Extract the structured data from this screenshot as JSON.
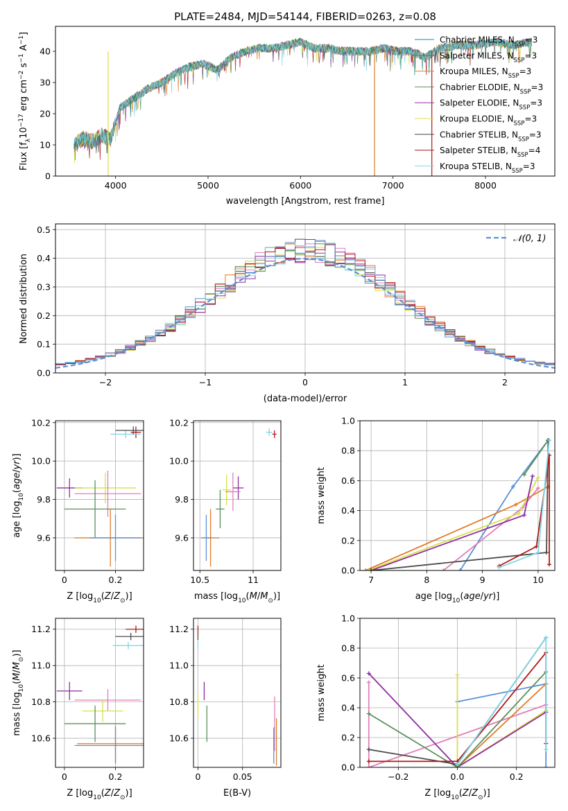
{
  "figure_title": "PLATE=2484, MJD=54144, FIBERID=0263, z=0.08",
  "colors": {
    "Chabrier MILES": "#1f8b8b",
    "Salpeter MILES": "#6b6b6b",
    "Kroupa MILES": "#e07b28",
    "Chabrier ELODIE": "#5a8f5a",
    "Salpeter ELODIE": "#8e2ca0",
    "Kroupa ELODIE": "#d8e04a",
    "Chabrier STELIB": "#4a4a4a",
    "Salpeter STELIB": "#b01818",
    "Kroupa STELIB": "#7fd6e6",
    "gaussian": "#5b8fd6",
    "pink": "#e07fb8",
    "blue": "#5b8fd6"
  },
  "chart_data": [
    {
      "id": "spectrum",
      "type": "line",
      "xlabel": "wavelength [Angstrom, rest frame]",
      "ylabel": "Flux [f_λ 10^-17 erg cm^-2 s^-1 A^-1]",
      "xlim": [
        3350,
        8750
      ],
      "ylim": [
        0,
        48
      ],
      "xticks": [
        4000,
        5000,
        6000,
        7000,
        8000
      ],
      "yticks": [
        0,
        10,
        20,
        30,
        40
      ],
      "grid": false,
      "legend_position": "top-right",
      "x": [
        3550,
        3650,
        3750,
        3850,
        3950,
        4050,
        4150,
        4250,
        4350,
        4500,
        4650,
        4800,
        4950,
        5100,
        5250,
        5400,
        5550,
        5700,
        5850,
        6000,
        6150,
        6300,
        6450,
        6600,
        6750,
        6900,
        7050,
        7200,
        7350,
        7500,
        7700,
        7900,
        8100,
        8300,
        8500
      ],
      "y": [
        10,
        12,
        11,
        13,
        12,
        22,
        24,
        26,
        28,
        30,
        33,
        35,
        36,
        34,
        38,
        40,
        41,
        41,
        42,
        43,
        41,
        41,
        40,
        40,
        40,
        41,
        40,
        40,
        38,
        41,
        42,
        42,
        43,
        42,
        43
      ],
      "series": [
        {
          "name": "Chabrier MILES, N_SSP=3",
          "name_main": "Chabrier MILES, N",
          "name_sub": "SSP",
          "name_tail": "=3"
        },
        {
          "name": "Salpeter MILES, N_SSP=3",
          "name_main": "Salpeter MILES, N",
          "name_sub": "SSP",
          "name_tail": "=3"
        },
        {
          "name": "Kroupa MILES, N_SSP=3",
          "name_main": "Kroupa MILES, N",
          "name_sub": "SSP",
          "name_tail": "=3"
        },
        {
          "name": "Chabrier ELODIE, N_SSP=3",
          "name_main": "Chabrier ELODIE, N",
          "name_sub": "SSP",
          "name_tail": "=3"
        },
        {
          "name": "Salpeter ELODIE, N_SSP=3",
          "name_main": "Salpeter ELODIE, N",
          "name_sub": "SSP",
          "name_tail": "=3"
        },
        {
          "name": "Kroupa ELODIE, N_SSP=3",
          "name_main": "Kroupa ELODIE, N",
          "name_sub": "SSP",
          "name_tail": "=3"
        },
        {
          "name": "Chabrier STELIB, N_SSP=3",
          "name_main": "Chabrier STELIB, N",
          "name_sub": "SSP",
          "name_tail": "=3"
        },
        {
          "name": "Salpeter STELIB, N_SSP=4",
          "name_main": "Salpeter STELIB, N",
          "name_sub": "SSP",
          "name_tail": "=4"
        },
        {
          "name": "Kroupa STELIB, N_SSP=3",
          "name_main": "Kroupa STELIB, N",
          "name_sub": "SSP",
          "name_tail": "=3"
        }
      ],
      "drops": [
        {
          "x": 3920,
          "color": "Kroupa ELODIE"
        },
        {
          "x": 6800,
          "color": "Kroupa MILES"
        },
        {
          "x": 7420,
          "color": "Salpeter STELIB"
        }
      ]
    },
    {
      "id": "residuals",
      "type": "bar",
      "xlabel": "(data-model)/error",
      "ylabel": "Normed distribution",
      "xlim": [
        -2.5,
        2.5
      ],
      "ylim": [
        0,
        0.52
      ],
      "xticks": [
        -2,
        -1,
        0,
        1,
        2
      ],
      "xtick_labels": [
        "−2",
        "−1",
        "0",
        "1",
        "2"
      ],
      "yticks": [
        0.0,
        0.1,
        0.2,
        0.3,
        0.4,
        0.5
      ],
      "ytick_labels": [
        "0.0",
        "0.1",
        "0.2",
        "0.3",
        "0.4",
        "0.5"
      ],
      "grid": true,
      "legend_position": "top-right",
      "legend_label": "𝒩(0, 1)",
      "bin_width": 0.1
    },
    {
      "id": "age_vs_Z",
      "type": "scatter",
      "xlabel": "Z [log10(Z/Z⊙)]",
      "ylabel": "age [log10(age/yr)]",
      "xlim": [
        -0.035,
        0.31
      ],
      "ylim": [
        9.43,
        10.21
      ],
      "xticks": [
        0.0,
        0.2
      ],
      "yticks": [
        9.6,
        9.8,
        10.0,
        10.2
      ],
      "grid": true,
      "points": [
        {
          "x": 0.28,
          "y": 10.15,
          "xerr": 0.02,
          "yerr": 0.03,
          "color": "Salpeter STELIB"
        },
        {
          "x": 0.24,
          "y": 10.14,
          "xerr": 0.06,
          "yerr": 0.02,
          "color": "Kroupa STELIB"
        },
        {
          "x": 0.27,
          "y": 10.16,
          "xerr": 0.07,
          "yerr": 0.02,
          "color": "Chabrier STELIB"
        },
        {
          "x": 0.02,
          "y": 9.86,
          "xerr": 0.05,
          "yerr": 0.05,
          "color": "Salpeter ELODIE"
        },
        {
          "x": 0.16,
          "y": 9.86,
          "xerr": 0.12,
          "yerr": 0.08,
          "color": "Kroupa ELODIE"
        },
        {
          "x": 0.17,
          "y": 9.83,
          "xerr": 0.13,
          "yerr": 0.12,
          "color": "pink"
        },
        {
          "x": 0.12,
          "y": 9.75,
          "xerr": 0.12,
          "yerr": 0.15,
          "color": "Chabrier ELODIE"
        },
        {
          "x": 0.18,
          "y": 9.6,
          "xerr": 0.14,
          "yerr": 0.15,
          "color": "Kroupa MILES"
        },
        {
          "x": 0.2,
          "y": 9.6,
          "xerr": 0.1,
          "yerr": 0.12,
          "color": "blue"
        }
      ]
    },
    {
      "id": "age_vs_mass",
      "type": "scatter",
      "xlabel": "mass [log10(M/M⊙)]",
      "ylabel": "",
      "xlim": [
        10.44,
        11.26
      ],
      "ylim": [
        9.43,
        10.21
      ],
      "xticks": [
        10.5,
        11.0
      ],
      "yticks": [
        9.6,
        9.8,
        10.0,
        10.2
      ],
      "grid": true,
      "points": [
        {
          "x": 11.2,
          "y": 10.14,
          "xerr": 0.02,
          "yerr": 0.02,
          "color": "Salpeter STELIB"
        },
        {
          "x": 11.15,
          "y": 10.15,
          "xerr": 0.03,
          "yerr": 0.02,
          "color": "Kroupa STELIB"
        },
        {
          "x": 10.86,
          "y": 9.86,
          "xerr": 0.05,
          "yerr": 0.06,
          "color": "Salpeter ELODIE"
        },
        {
          "x": 10.75,
          "y": 9.85,
          "xerr": 0.04,
          "yerr": 0.08,
          "color": "Kroupa ELODIE"
        },
        {
          "x": 10.81,
          "y": 9.84,
          "xerr": 0.07,
          "yerr": 0.1,
          "color": "pink"
        },
        {
          "x": 10.69,
          "y": 9.75,
          "xerr": 0.04,
          "yerr": 0.1,
          "color": "Chabrier ELODIE"
        },
        {
          "x": 10.6,
          "y": 9.6,
          "xerr": 0.08,
          "yerr": 0.15,
          "color": "Kroupa MILES"
        },
        {
          "x": 10.56,
          "y": 9.6,
          "xerr": 0.05,
          "yerr": 0.12,
          "color": "blue"
        }
      ]
    },
    {
      "id": "massweight_vs_age",
      "type": "line",
      "xlabel": "age [log10(age/yr)]",
      "ylabel": "mass weight",
      "xlim": [
        6.8,
        10.3
      ],
      "ylim": [
        0,
        1.0
      ],
      "xticks": [
        7,
        8,
        9,
        10
      ],
      "yticks": [
        0.0,
        0.2,
        0.4,
        0.6,
        0.8,
        1.0
      ],
      "grid": true,
      "series": [
        {
          "color": "blue",
          "points": [
            [
              8.6,
              0.0
            ],
            [
              9.55,
              0.56
            ],
            [
              10.18,
              0.87
            ]
          ]
        },
        {
          "color": "pink",
          "points": [
            [
              8.3,
              0.0
            ],
            [
              9.72,
              0.42
            ],
            [
              10.0,
              0.55
            ]
          ]
        },
        {
          "color": "Kroupa MILES",
          "points": [
            [
              6.9,
              0.0
            ],
            [
              9.6,
              0.44
            ],
            [
              10.18,
              0.56
            ]
          ]
        },
        {
          "color": "Kroupa ELODIE",
          "points": [
            [
              6.95,
              0.0
            ],
            [
              9.65,
              0.38
            ],
            [
              10.0,
              0.62
            ]
          ]
        },
        {
          "color": "Salpeter ELODIE",
          "points": [
            [
              7.0,
              0.0
            ],
            [
              9.75,
              0.37
            ],
            [
              9.9,
              0.63
            ]
          ]
        },
        {
          "color": "Chabrier ELODIE",
          "points": [
            [
              9.75,
              0.64
            ],
            [
              10.18,
              0.87
            ]
          ]
        },
        {
          "color": "Chabrier STELIB",
          "points": [
            [
              7.0,
              0.0
            ],
            [
              10.15,
              0.12
            ],
            [
              10.18,
              0.87
            ]
          ]
        },
        {
          "color": "Salpeter STELIB",
          "points": [
            [
              9.3,
              0.03
            ],
            [
              9.97,
              0.16
            ],
            [
              10.2,
              0.77
            ],
            [
              10.2,
              0.04
            ]
          ]
        },
        {
          "color": "Kroupa STELIB",
          "points": [
            [
              9.3,
              0.02
            ],
            [
              10.0,
              0.12
            ],
            [
              10.2,
              0.87
            ]
          ]
        }
      ]
    },
    {
      "id": "mass_vs_Z",
      "type": "scatter",
      "xlabel": "Z [log10(Z/Z⊙)]",
      "ylabel": "mass [log10(M/M⊙)]",
      "xlim": [
        -0.035,
        0.31
      ],
      "ylim": [
        10.44,
        11.26
      ],
      "xticks": [
        0.0,
        0.2
      ],
      "yticks": [
        10.6,
        10.8,
        11.0,
        11.2
      ],
      "grid": true,
      "points": [
        {
          "x": 0.28,
          "y": 11.2,
          "xerr": 0.04,
          "yerr": 0.02,
          "color": "Salpeter STELIB"
        },
        {
          "x": 0.26,
          "y": 11.16,
          "xerr": 0.06,
          "yerr": 0.02,
          "color": "Chabrier STELIB"
        },
        {
          "x": 0.25,
          "y": 11.11,
          "xerr": 0.06,
          "yerr": 0.02,
          "color": "Kroupa STELIB"
        },
        {
          "x": 0.02,
          "y": 10.86,
          "xerr": 0.05,
          "yerr": 0.05,
          "color": "Salpeter ELODIE"
        },
        {
          "x": 0.17,
          "y": 10.81,
          "xerr": 0.13,
          "yerr": 0.06,
          "color": "pink"
        },
        {
          "x": 0.15,
          "y": 10.75,
          "xerr": 0.08,
          "yerr": 0.06,
          "color": "Kroupa ELODIE"
        },
        {
          "x": 0.12,
          "y": 10.68,
          "xerr": 0.12,
          "yerr": 0.1,
          "color": "Chabrier ELODIE"
        },
        {
          "x": 0.2,
          "y": 10.57,
          "xerr": 0.15,
          "yerr": 0.1,
          "color": "Kroupa MILES"
        },
        {
          "x": 0.2,
          "y": 10.56,
          "xerr": 0.16,
          "yerr": 0.1,
          "color": "blue"
        }
      ]
    },
    {
      "id": "mass_vs_ebv",
      "type": "scatter",
      "xlabel": "E(B-V)",
      "ylabel": "",
      "xlim": [
        -0.005,
        0.093
      ],
      "ylim": [
        10.44,
        11.26
      ],
      "xticks": [
        0.0,
        0.05
      ],
      "yticks": [
        10.6,
        10.8,
        11.0,
        11.2
      ],
      "grid": true,
      "points": [
        {
          "x": 0.0,
          "y": 11.2,
          "xerr": 0.0,
          "yerr": 0.02,
          "color": "Salpeter STELIB"
        },
        {
          "x": 0.0,
          "y": 11.16,
          "xerr": 0.0,
          "yerr": 0.02,
          "color": "Chabrier STELIB"
        },
        {
          "x": 0.0,
          "y": 11.11,
          "xerr": 0.0,
          "yerr": 0.02,
          "color": "Kroupa STELIB"
        },
        {
          "x": 0.0,
          "y": 10.78,
          "xerr": 0.0,
          "yerr": 0.06,
          "color": "Kroupa ELODIE"
        },
        {
          "x": 0.007,
          "y": 10.86,
          "xerr": 0.0,
          "yerr": 0.05,
          "color": "Salpeter ELODIE"
        },
        {
          "x": 0.01,
          "y": 10.68,
          "xerr": 0.0,
          "yerr": 0.1,
          "color": "Chabrier ELODIE"
        },
        {
          "x": 0.086,
          "y": 10.68,
          "xerr": 0.0,
          "yerr": 0.15,
          "color": "pink"
        },
        {
          "x": 0.088,
          "y": 10.58,
          "xerr": 0.0,
          "yerr": 0.13,
          "color": "Kroupa MILES"
        },
        {
          "x": 0.085,
          "y": 10.56,
          "xerr": 0.0,
          "yerr": 0.1,
          "color": "blue"
        }
      ]
    },
    {
      "id": "massweight_vs_Z",
      "type": "line",
      "xlabel": "Z [log10(Z/Z⊙)]",
      "ylabel": "mass weight",
      "xlim": [
        -0.33,
        0.33
      ],
      "ylim": [
        0,
        1.0
      ],
      "xticks": [
        -0.2,
        0.0,
        0.2
      ],
      "xtick_labels": [
        "−0.2",
        "0.0",
        "0.2"
      ],
      "yticks": [
        0.0,
        0.2,
        0.4,
        0.6,
        0.8,
        1.0
      ],
      "grid": true,
      "series": [
        {
          "color": "blue",
          "points": [
            [
              0.0,
              0.44
            ],
            [
              0.3,
              0.56
            ],
            [
              0.3,
              0.0
            ]
          ]
        },
        {
          "color": "pink",
          "points": [
            [
              -0.3,
              0.57
            ],
            [
              -0.3,
              0.0
            ],
            [
              0.3,
              0.42
            ]
          ]
        },
        {
          "color": "Kroupa MILES",
          "points": [
            [
              0.0,
              0.0
            ],
            [
              0.3,
              0.56
            ]
          ]
        },
        {
          "color": "Kroupa ELODIE",
          "points": [
            [
              0.0,
              0.62
            ],
            [
              0.0,
              0.0
            ],
            [
              0.3,
              0.38
            ]
          ]
        },
        {
          "color": "Salpeter ELODIE",
          "points": [
            [
              -0.3,
              0.63
            ],
            [
              0.0,
              0.0
            ],
            [
              0.3,
              0.37
            ]
          ]
        },
        {
          "color": "Chabrier ELODIE",
          "points": [
            [
              -0.3,
              0.36
            ],
            [
              0.0,
              0.0
            ],
            [
              0.3,
              0.64
            ]
          ]
        },
        {
          "color": "Chabrier STELIB",
          "points": [
            [
              -0.3,
              0.12
            ],
            [
              0.0,
              0.02
            ],
            [
              0.3,
              0.87
            ]
          ]
        },
        {
          "color": "Salpeter STELIB",
          "points": [
            [
              -0.3,
              0.04
            ],
            [
              0.0,
              0.04
            ],
            [
              0.3,
              0.77
            ],
            [
              0.3,
              0.16
            ]
          ]
        },
        {
          "color": "Kroupa STELIB",
          "points": [
            [
              0.0,
              0.02
            ],
            [
              0.3,
              0.87
            ],
            [
              0.3,
              0.12
            ]
          ]
        }
      ]
    }
  ]
}
